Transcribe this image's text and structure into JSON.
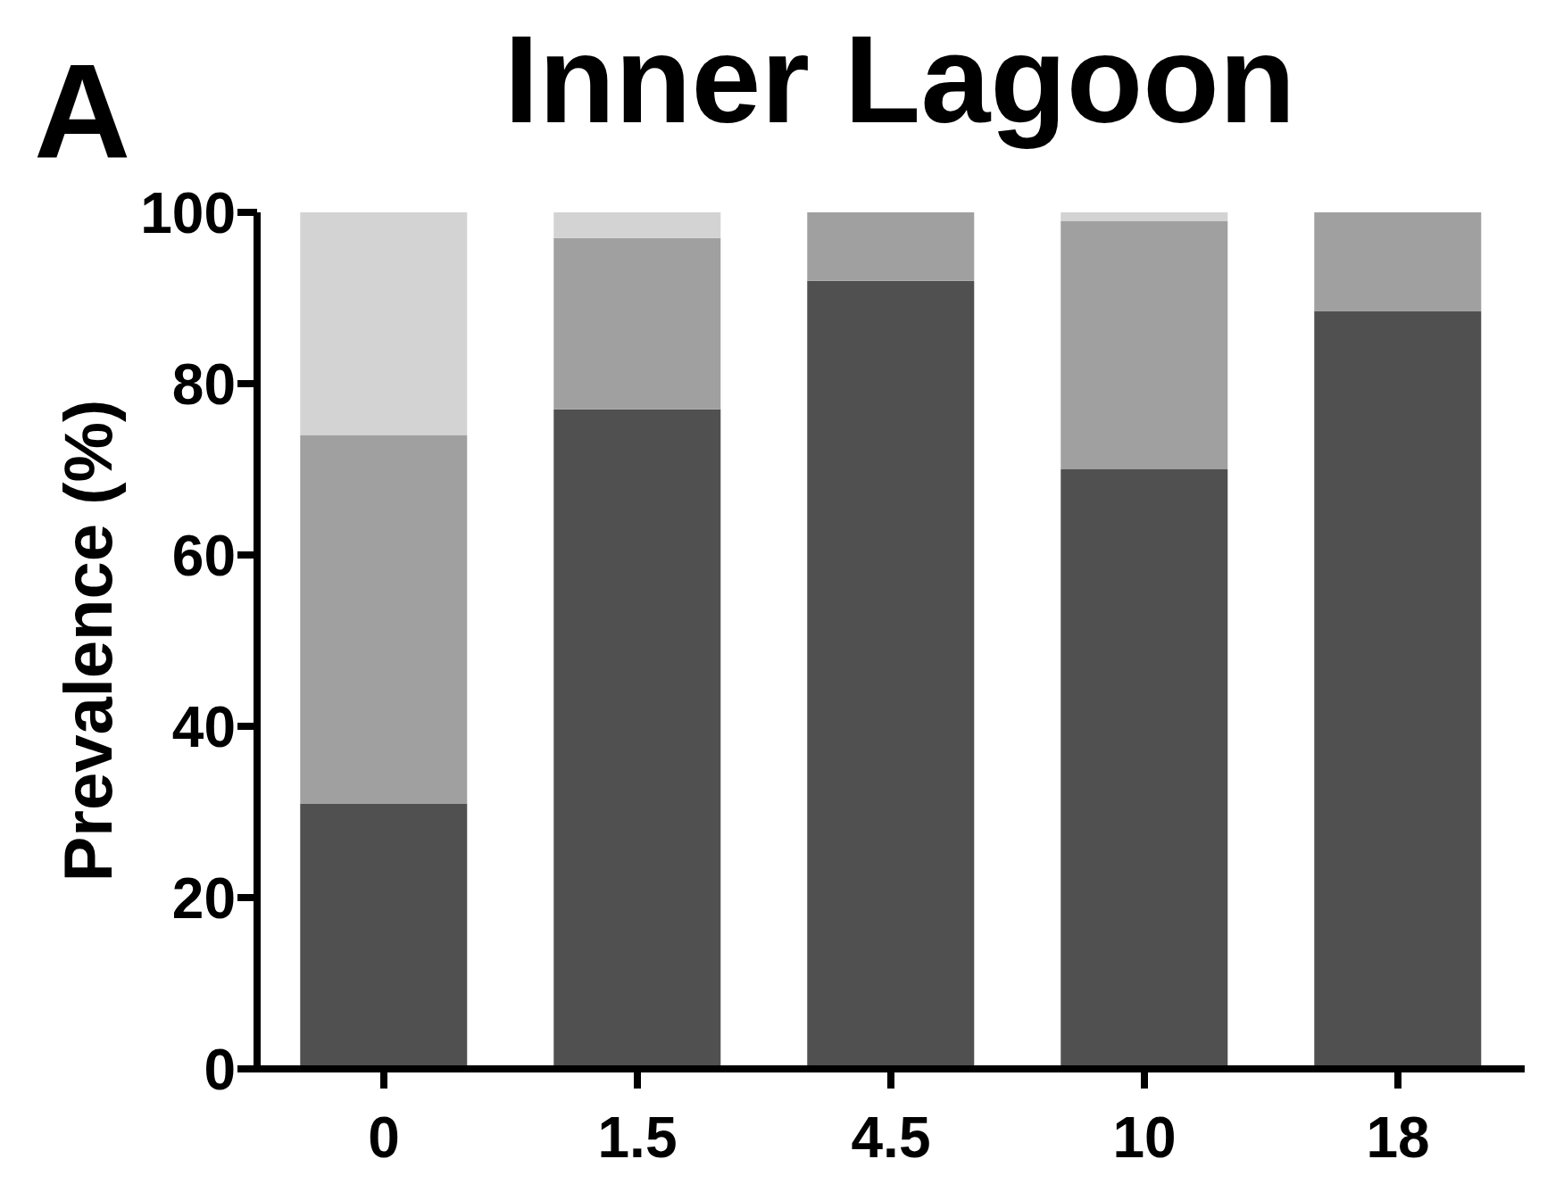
{
  "chart_data": {
    "type": "bar",
    "title": "Inner Lagoon",
    "ylabel": "Prevalence (%)",
    "annotations": [
      "A"
    ],
    "categories": [
      "0",
      "1.5",
      "4.5",
      "10",
      "18"
    ],
    "stacked": true,
    "series": [
      {
        "color": "#505050",
        "values": [
          31,
          77,
          92,
          70,
          88.5
        ]
      },
      {
        "color": "#a0a0a0",
        "values": [
          43,
          20,
          8,
          29,
          11.5
        ]
      },
      {
        "color": "#d3d3d3",
        "values": [
          26,
          3,
          0,
          1,
          0
        ]
      }
    ],
    "ylim": [
      0,
      100
    ],
    "yticks": [
      0,
      20,
      40,
      60,
      80,
      100
    ],
    "grid": false,
    "legend": false
  }
}
